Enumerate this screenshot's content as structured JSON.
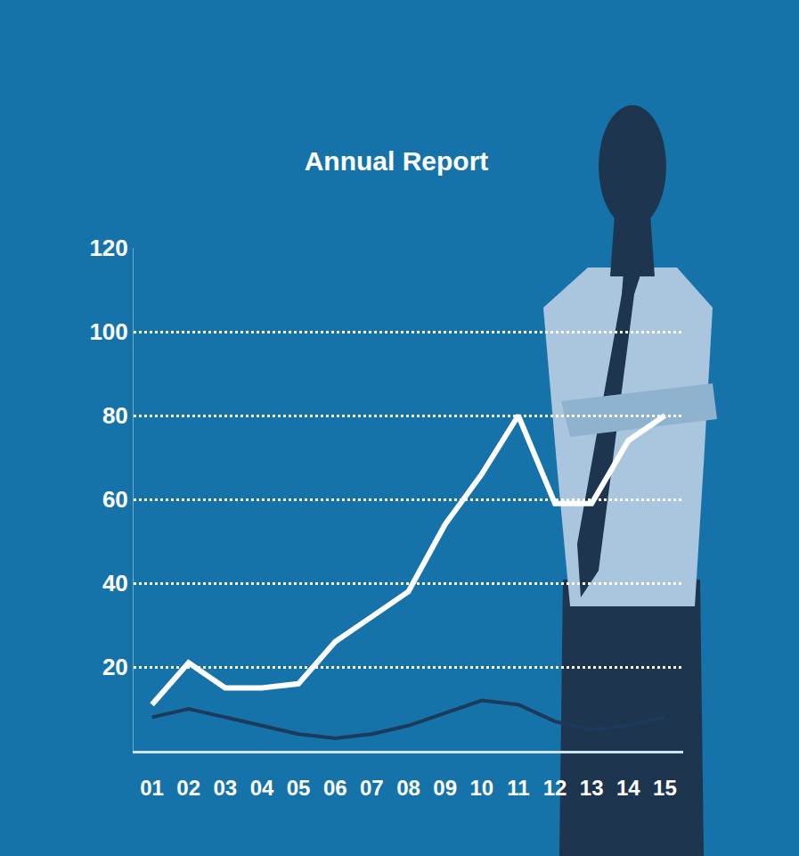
{
  "chart_data": {
    "type": "line",
    "title": "Annual Report",
    "categories": [
      "01",
      "02",
      "03",
      "04",
      "05",
      "06",
      "07",
      "08",
      "09",
      "10",
      "11",
      "12",
      "13",
      "14",
      "15"
    ],
    "series": [
      {
        "color": "#ffffff",
        "values": [
          11,
          21,
          15,
          15,
          16,
          26,
          32,
          38,
          54,
          66,
          80,
          59,
          59,
          74,
          80
        ]
      },
      {
        "color": "#1b3a5c",
        "values": [
          8,
          10,
          8,
          6,
          4,
          3,
          4,
          6,
          9,
          12,
          11,
          7,
          5,
          6,
          8
        ]
      }
    ],
    "ylim": [
      0,
      120
    ],
    "yticks": [
      20,
      40,
      60,
      80,
      100,
      120
    ],
    "grid": true
  }
}
